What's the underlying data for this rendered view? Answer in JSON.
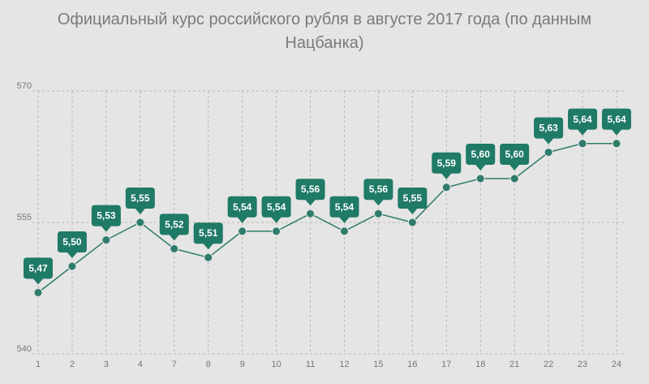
{
  "chart_data": {
    "type": "line",
    "title": "Официальный курс российского рубля в августе 2017 года (по данным Нацбанка)",
    "xlabel": "",
    "ylabel": "",
    "categories": [
      "1",
      "2",
      "3",
      "4",
      "7",
      "8",
      "9",
      "10",
      "11",
      "12",
      "15",
      "16",
      "17",
      "18",
      "21",
      "22",
      "23",
      "24"
    ],
    "series": [
      {
        "values": [
          547,
          550,
          553,
          555,
          552,
          551,
          554,
          554,
          556,
          554,
          556,
          555,
          559,
          560,
          560,
          563,
          564,
          564
        ],
        "labels": [
          "5,47",
          "5,50",
          "5,53",
          "5,55",
          "5,52",
          "5,51",
          "5,54",
          "5,54",
          "5,56",
          "5,54",
          "5,56",
          "5,55",
          "5,59",
          "5,60",
          "5,60",
          "5,63",
          "5,64",
          "5,64"
        ]
      }
    ],
    "ylim": [
      540,
      570
    ],
    "y_ticks": [
      540,
      555,
      570
    ],
    "grid": {
      "horizontal": true,
      "vertical": true,
      "dashed": true
    },
    "colors": {
      "line": "#2e7c6c",
      "marker": "#2e7c6c",
      "label_bg": "#1f7a66",
      "label_text": "#ffffff",
      "grid": "#b8b8b8",
      "tick_text": "#777777",
      "title": "#7a7a7a",
      "background": "#e5e5e5"
    }
  }
}
